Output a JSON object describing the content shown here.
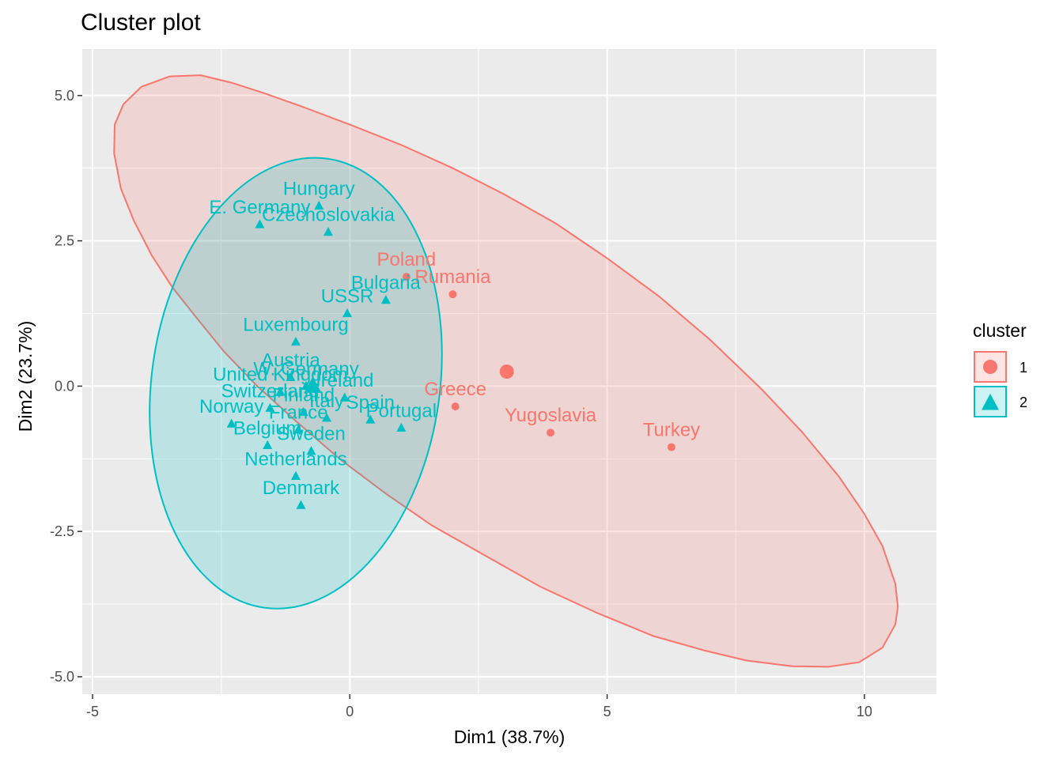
{
  "chart_data": {
    "type": "scatter",
    "title": "Cluster plot",
    "xlabel": "Dim1 (38.7%)",
    "ylabel": "Dim2 (23.7%)",
    "xlim": [
      -5.2,
      11.4
    ],
    "ylim": [
      -5.3,
      5.8
    ],
    "xticks": [
      -5,
      0,
      5,
      10
    ],
    "xtick_labels": [
      "-5",
      "0",
      "5",
      "10"
    ],
    "yticks": [
      -5,
      -2.5,
      0,
      2.5,
      5
    ],
    "ytick_labels": [
      "-5.0",
      "-2.5",
      "0.0",
      "2.5",
      "5.0"
    ],
    "grid": true,
    "background": "#ebebeb",
    "legend": {
      "title": "cluster",
      "position": "right",
      "items": [
        {
          "label": "1",
          "color": "#f8766d",
          "marker": "circle"
        },
        {
          "label": "2",
          "color": "#00bfc4",
          "marker": "triangle"
        }
      ]
    },
    "series": [
      {
        "name": "1",
        "color": "#f8766d",
        "marker": "circle",
        "centroid": [
          3.05,
          0.25
        ],
        "points": [
          {
            "label": "Poland",
            "x": 1.1,
            "y": 1.88
          },
          {
            "label": "Rumania",
            "x": 2.0,
            "y": 1.58
          },
          {
            "label": "Greece",
            "x": 2.05,
            "y": -0.35
          },
          {
            "label": "Yugoslavia",
            "x": 3.9,
            "y": -0.8
          },
          {
            "label": "Turkey",
            "x": 6.25,
            "y": -1.05
          }
        ],
        "hull": [
          [
            -2.9,
            5.35
          ],
          [
            -3.5,
            5.33
          ],
          [
            -4.05,
            5.15
          ],
          [
            -4.4,
            4.85
          ],
          [
            -4.57,
            4.5
          ],
          [
            -4.58,
            4.0
          ],
          [
            -4.45,
            3.4
          ],
          [
            -4.2,
            2.85
          ],
          [
            -3.85,
            2.25
          ],
          [
            -3.45,
            1.7
          ],
          [
            -3.0,
            1.2
          ],
          [
            -2.45,
            0.6
          ],
          [
            -1.8,
            0.0
          ],
          [
            -1.05,
            -0.6
          ],
          [
            -0.2,
            -1.25
          ],
          [
            0.7,
            -1.85
          ],
          [
            1.6,
            -2.4
          ],
          [
            2.6,
            -2.9
          ],
          [
            3.7,
            -3.45
          ],
          [
            4.8,
            -3.9
          ],
          [
            5.9,
            -4.3
          ],
          [
            6.9,
            -4.55
          ],
          [
            7.7,
            -4.72
          ],
          [
            8.6,
            -4.82
          ],
          [
            9.3,
            -4.83
          ],
          [
            9.9,
            -4.75
          ],
          [
            10.35,
            -4.5
          ],
          [
            10.6,
            -4.1
          ],
          [
            10.65,
            -3.8
          ],
          [
            10.6,
            -3.4
          ],
          [
            10.35,
            -2.75
          ],
          [
            10.0,
            -2.2
          ],
          [
            9.5,
            -1.55
          ],
          [
            8.8,
            -0.8
          ],
          [
            8.0,
            -0.05
          ],
          [
            7.0,
            0.8
          ],
          [
            6.0,
            1.55
          ],
          [
            5.0,
            2.2
          ],
          [
            4.0,
            2.8
          ],
          [
            3.0,
            3.3
          ],
          [
            2.0,
            3.75
          ],
          [
            1.0,
            4.15
          ],
          [
            0.0,
            4.5
          ],
          [
            -0.9,
            4.8
          ],
          [
            -1.7,
            5.05
          ],
          [
            -2.3,
            5.22
          ]
        ]
      },
      {
        "name": "2",
        "color": "#00bfc4",
        "marker": "triangle",
        "centroid": [
          -0.72,
          0.0
        ],
        "points": [
          {
            "label": "Hungary",
            "x": -0.6,
            "y": 3.1
          },
          {
            "label": "E. Germany",
            "x": -1.75,
            "y": 2.78
          },
          {
            "label": "Czechoslovakia",
            "x": -0.42,
            "y": 2.65
          },
          {
            "label": "Bulgaria",
            "x": 0.7,
            "y": 1.48
          },
          {
            "label": "USSR",
            "x": -0.05,
            "y": 1.25
          },
          {
            "label": "Luxembourg",
            "x": -1.05,
            "y": 0.76
          },
          {
            "label": "Austria",
            "x": -1.15,
            "y": 0.15
          },
          {
            "label": "W. Germany",
            "x": -0.85,
            "y": 0.0
          },
          {
            "label": "United Kingdom",
            "x": -1.35,
            "y": -0.1
          },
          {
            "label": "Ireland",
            "x": -0.1,
            "y": -0.2
          },
          {
            "label": "Spain",
            "x": 0.4,
            "y": -0.58
          },
          {
            "label": "Portugal",
            "x": 1.0,
            "y": -0.72
          },
          {
            "label": "Switzerland",
            "x": -1.55,
            "y": -0.38
          },
          {
            "label": "Finland",
            "x": -0.9,
            "y": -0.45
          },
          {
            "label": "Italy",
            "x": -0.45,
            "y": -0.55
          },
          {
            "label": "Norway",
            "x": -2.3,
            "y": -0.65
          },
          {
            "label": "France",
            "x": -1.0,
            "y": -0.75
          },
          {
            "label": "Belgium",
            "x": -1.6,
            "y": -1.02
          },
          {
            "label": "Sweden",
            "x": -0.75,
            "y": -1.12
          },
          {
            "label": "Netherlands",
            "x": -1.05,
            "y": -1.55
          },
          {
            "label": "Denmark",
            "x": -0.95,
            "y": -2.05
          }
        ],
        "ellipse": {
          "cx": -1.05,
          "cy": 0.05,
          "rx": 2.8,
          "ry": 3.9,
          "angle_deg": 8
        }
      }
    ]
  }
}
